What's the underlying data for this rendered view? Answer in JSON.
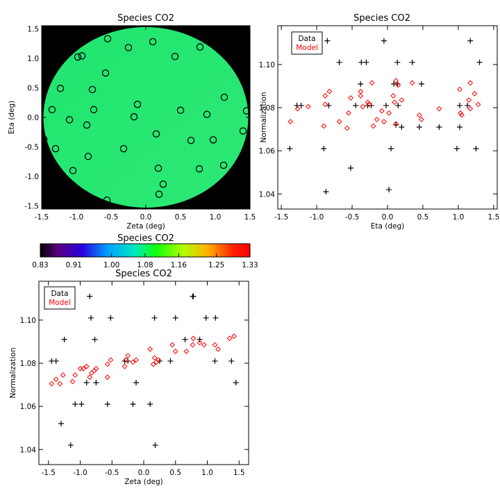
{
  "chart_data": [
    {
      "type": "heatmap",
      "title": "Species CO2",
      "xlabel": "Zeta (deg)",
      "ylabel": "Eta (deg)",
      "xlim": [
        -1.5,
        1.5
      ],
      "ylim": [
        -1.55,
        1.55
      ],
      "xticks": [
        "-1.5",
        "-1.0",
        "-0.5",
        "0.0",
        "0.5",
        "1.0",
        "1.5"
      ],
      "yticks": [
        "-1.5",
        "-1.0",
        "-0.5",
        "0.0",
        "0.5",
        "1.0",
        "1.5"
      ],
      "field_value_range": [
        1.08,
        1.09
      ],
      "points": [
        {
          "zeta": -0.55,
          "eta": 1.33
        },
        {
          "zeta": 0.1,
          "eta": 1.28
        },
        {
          "zeta": -0.98,
          "eta": 1.02
        },
        {
          "zeta": -0.92,
          "eta": 1.04
        },
        {
          "zeta": -0.25,
          "eta": 1.18
        },
        {
          "zeta": 0.42,
          "eta": 1.03
        },
        {
          "zeta": 0.78,
          "eta": 1.19
        },
        {
          "zeta": -0.58,
          "eta": 0.75
        },
        {
          "zeta": -1.23,
          "eta": 0.49
        },
        {
          "zeta": -0.77,
          "eta": 0.47
        },
        {
          "zeta": -1.35,
          "eta": 0.13
        },
        {
          "zeta": -0.75,
          "eta": 0.13
        },
        {
          "zeta": -1.1,
          "eta": -0.04
        },
        {
          "zeta": -0.85,
          "eta": -0.13
        },
        {
          "zeta": -0.12,
          "eta": 0.22
        },
        {
          "zeta": -0.17,
          "eta": 0.01
        },
        {
          "zeta": 0.5,
          "eta": 0.12
        },
        {
          "zeta": 0.88,
          "eta": 0.05
        },
        {
          "zeta": 1.13,
          "eta": 0.34
        },
        {
          "zeta": 1.45,
          "eta": 0.11
        },
        {
          "zeta": 1.4,
          "eta": -0.23
        },
        {
          "zeta": -1.47,
          "eta": -0.37
        },
        {
          "zeta": -1.3,
          "eta": -0.53
        },
        {
          "zeta": -0.32,
          "eta": -0.53
        },
        {
          "zeta": 0.15,
          "eta": -0.28
        },
        {
          "zeta": 0.65,
          "eta": -0.39
        },
        {
          "zeta": 0.97,
          "eta": -0.38
        },
        {
          "zeta": -0.83,
          "eta": -0.66
        },
        {
          "zeta": 1.12,
          "eta": -0.81
        },
        {
          "zeta": -1.05,
          "eta": -0.9
        },
        {
          "zeta": 0.18,
          "eta": -0.86
        },
        {
          "zeta": 0.77,
          "eta": -0.87
        },
        {
          "zeta": 0.25,
          "eta": -1.13
        },
        {
          "zeta": 0.19,
          "eta": -1.3
        },
        {
          "zeta": -0.56,
          "eta": -1.4
        }
      ]
    },
    {
      "type": "colorbar",
      "title": "Species CO2",
      "tick_labels": [
        "0.83",
        "0.91",
        "1.00",
        "1.08",
        "1.16",
        "1.25",
        "1.33"
      ],
      "range": [
        0.83,
        1.33
      ]
    },
    {
      "type": "scatter",
      "title": "Species CO2",
      "xlabel": "Eta (deg)",
      "ylabel": "Normalization",
      "xlim": [
        -1.55,
        1.55
      ],
      "ylim": [
        1.033,
        1.118
      ],
      "xticks": [
        "-1.5",
        "-1.0",
        "-0.5",
        "0.0",
        "0.5",
        "1.0",
        "1.5"
      ],
      "yticks": [
        "1.04",
        "1.06",
        "1.08",
        "1.10"
      ],
      "legend": [
        "Data",
        "Model"
      ],
      "legend_position": "top-left",
      "series": [
        {
          "name": "Data",
          "color": "#000000",
          "marker": "plus",
          "points": [
            [
              -1.38,
              1.061
            ],
            [
              -1.28,
              1.081
            ],
            [
              -1.22,
              1.081
            ],
            [
              -0.9,
              1.061
            ],
            [
              -0.87,
              1.041
            ],
            [
              -0.85,
              1.111
            ],
            [
              -0.83,
              1.081
            ],
            [
              -0.68,
              1.101
            ],
            [
              -0.52,
              1.052
            ],
            [
              -0.45,
              1.081
            ],
            [
              -0.38,
              1.091
            ],
            [
              -0.37,
              1.101
            ],
            [
              -0.3,
              1.101
            ],
            [
              -0.28,
              1.081
            ],
            [
              -0.23,
              1.081
            ],
            [
              -0.05,
              1.111
            ],
            [
              -0.02,
              1.081
            ],
            [
              0.05,
              1.061
            ],
            [
              0.02,
              1.042
            ],
            [
              0.09,
              1.091
            ],
            [
              0.12,
              1.072
            ],
            [
              0.14,
              1.101
            ],
            [
              0.14,
              1.091
            ],
            [
              0.15,
              1.081
            ],
            [
              0.2,
              1.071
            ],
            [
              0.35,
              1.101
            ],
            [
              0.45,
              1.071
            ],
            [
              0.48,
              1.091
            ],
            [
              0.73,
              1.071
            ],
            [
              0.98,
              1.061
            ],
            [
              1.02,
              1.081
            ],
            [
              1.02,
              1.071
            ],
            [
              1.13,
              1.081
            ],
            [
              1.17,
              1.111
            ],
            [
              1.25,
              1.061
            ],
            [
              1.3,
              1.101
            ]
          ]
        },
        {
          "name": "Model",
          "color": "#ff0000",
          "marker": "diamond",
          "points": [
            [
              -1.37,
              1.0735
            ],
            [
              -1.27,
              1.0795
            ],
            [
              -1.12,
              1.0805
            ],
            [
              -0.9,
              1.0715
            ],
            [
              -0.88,
              1.0815
            ],
            [
              -0.88,
              1.0855
            ],
            [
              -0.82,
              1.0875
            ],
            [
              -0.68,
              1.0735
            ],
            [
              -0.57,
              1.0705
            ],
            [
              -0.55,
              1.0775
            ],
            [
              -0.52,
              1.0845
            ],
            [
              -0.38,
              1.0855
            ],
            [
              -0.38,
              1.0875
            ],
            [
              -0.35,
              1.0805
            ],
            [
              -0.28,
              1.0825
            ],
            [
              -0.26,
              1.0815
            ],
            [
              -0.22,
              1.0915
            ],
            [
              -0.2,
              1.0715
            ],
            [
              -0.15,
              1.0745
            ],
            [
              -0.08,
              1.0785
            ],
            [
              -0.05,
              1.0735
            ],
            [
              0.02,
              1.0775
            ],
            [
              0.08,
              1.0855
            ],
            [
              0.1,
              1.0825
            ],
            [
              0.12,
              1.0725
            ],
            [
              0.12,
              1.0925
            ],
            [
              0.15,
              1.0905
            ],
            [
              0.2,
              1.0835
            ],
            [
              0.35,
              1.0915
            ],
            [
              0.45,
              1.0765
            ],
            [
              0.48,
              1.0745
            ],
            [
              0.73,
              1.0795
            ],
            [
              1.02,
              1.0885
            ],
            [
              1.03,
              1.0775
            ],
            [
              1.05,
              1.0765
            ],
            [
              1.15,
              1.0835
            ],
            [
              1.17,
              1.0915
            ],
            [
              1.23,
              1.0865
            ],
            [
              1.28,
              1.0815
            ],
            [
              1.17,
              1.0795
            ]
          ]
        }
      ]
    },
    {
      "type": "scatter",
      "title": "Species CO2",
      "xlabel": "Zeta (deg)",
      "ylabel": "Normalization",
      "xlim": [
        -1.65,
        1.65
      ],
      "ylim": [
        1.033,
        1.118
      ],
      "xticks": [
        "-1.5",
        "-1.0",
        "-0.5",
        "0.0",
        "0.5",
        "1.0",
        "1.5"
      ],
      "yticks": [
        "1.04",
        "1.06",
        "1.08",
        "1.10"
      ],
      "legend": [
        "Data",
        "Model"
      ],
      "legend_position": "top-left",
      "series": [
        {
          "name": "Data",
          "color": "#000000",
          "marker": "plus",
          "points": [
            [
              -1.45,
              1.081
            ],
            [
              -1.38,
              1.081
            ],
            [
              -1.3,
              1.052
            ],
            [
              -1.25,
              1.091
            ],
            [
              -1.15,
              1.042
            ],
            [
              -1.08,
              1.061
            ],
            [
              -0.98,
              1.061
            ],
            [
              -0.9,
              1.071
            ],
            [
              -0.85,
              1.111
            ],
            [
              -0.83,
              1.101
            ],
            [
              -0.77,
              1.091
            ],
            [
              -0.75,
              1.071
            ],
            [
              -0.57,
              1.061
            ],
            [
              -0.52,
              1.101
            ],
            [
              -0.3,
              1.081
            ],
            [
              -0.25,
              1.081
            ],
            [
              -0.17,
              1.061
            ],
            [
              -0.12,
              1.071
            ],
            [
              0.1,
              1.061
            ],
            [
              0.17,
              1.101
            ],
            [
              0.18,
              1.042
            ],
            [
              0.25,
              1.081
            ],
            [
              0.42,
              1.081
            ],
            [
              0.5,
              1.101
            ],
            [
              0.65,
              1.091
            ],
            [
              0.77,
              1.111
            ],
            [
              0.78,
              1.111
            ],
            [
              0.88,
              1.091
            ],
            [
              0.98,
              1.101
            ],
            [
              1.12,
              1.081
            ],
            [
              1.13,
              1.101
            ],
            [
              1.38,
              1.081
            ],
            [
              1.45,
              1.071
            ]
          ]
        },
        {
          "name": "Model",
          "color": "#ff0000",
          "marker": "diamond",
          "points": [
            [
              -1.45,
              1.0705
            ],
            [
              -1.38,
              1.0725
            ],
            [
              -1.32,
              1.0705
            ],
            [
              -1.27,
              1.0745
            ],
            [
              -1.12,
              1.0715
            ],
            [
              -1.08,
              1.0745
            ],
            [
              -1.0,
              1.0775
            ],
            [
              -0.95,
              1.0775
            ],
            [
              -0.9,
              1.0785
            ],
            [
              -0.85,
              1.0735
            ],
            [
              -0.82,
              1.0755
            ],
            [
              -0.78,
              1.0765
            ],
            [
              -0.75,
              1.0775
            ],
            [
              -0.57,
              1.0735
            ],
            [
              -0.57,
              1.0795
            ],
            [
              -0.52,
              1.0815
            ],
            [
              -0.3,
              1.0785
            ],
            [
              -0.28,
              1.0815
            ],
            [
              -0.25,
              1.0835
            ],
            [
              -0.17,
              1.0805
            ],
            [
              -0.12,
              1.0815
            ],
            [
              0.1,
              1.0865
            ],
            [
              0.15,
              1.0795
            ],
            [
              0.17,
              1.0825
            ],
            [
              0.2,
              1.0805
            ],
            [
              0.23,
              1.0815
            ],
            [
              0.45,
              1.0885
            ],
            [
              0.5,
              1.0855
            ],
            [
              0.67,
              1.0855
            ],
            [
              0.77,
              1.0885
            ],
            [
              0.78,
              1.0915
            ],
            [
              0.88,
              1.0895
            ],
            [
              0.95,
              1.0885
            ],
            [
              1.12,
              1.0885
            ],
            [
              1.17,
              1.0865
            ],
            [
              1.35,
              1.0915
            ],
            [
              1.42,
              1.0925
            ]
          ]
        }
      ]
    }
  ]
}
